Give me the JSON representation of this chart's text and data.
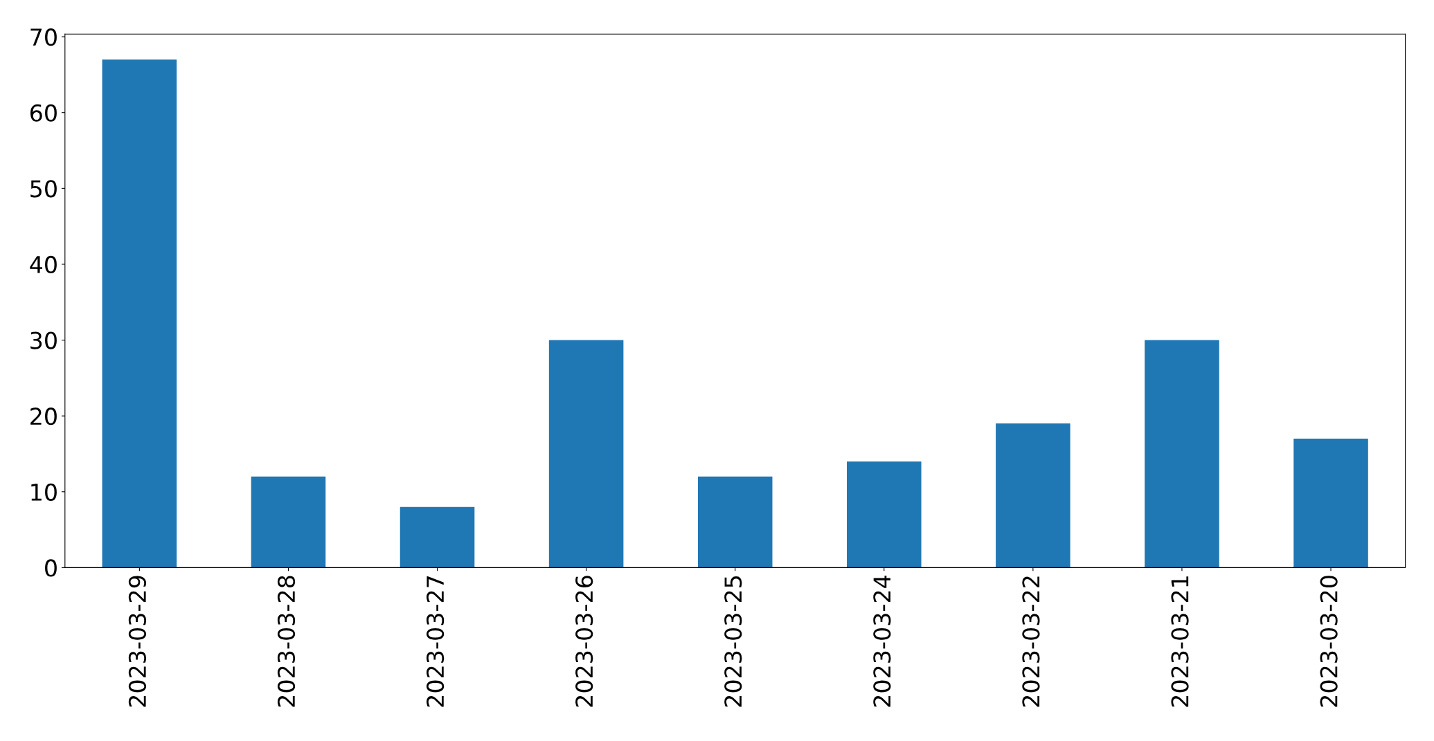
{
  "chart_data": {
    "type": "bar",
    "categories": [
      "2023-03-29",
      "2023-03-28",
      "2023-03-27",
      "2023-03-26",
      "2023-03-25",
      "2023-03-24",
      "2023-03-22",
      "2023-03-21",
      "2023-03-20"
    ],
    "values": [
      67,
      12,
      8,
      30,
      12,
      14,
      19,
      30,
      17
    ],
    "color": "#1f77b4",
    "ylim": [
      0,
      70.35
    ],
    "yticks": [
      0,
      10,
      20,
      30,
      40,
      50,
      60,
      70
    ],
    "grid": false,
    "legend": false
  }
}
